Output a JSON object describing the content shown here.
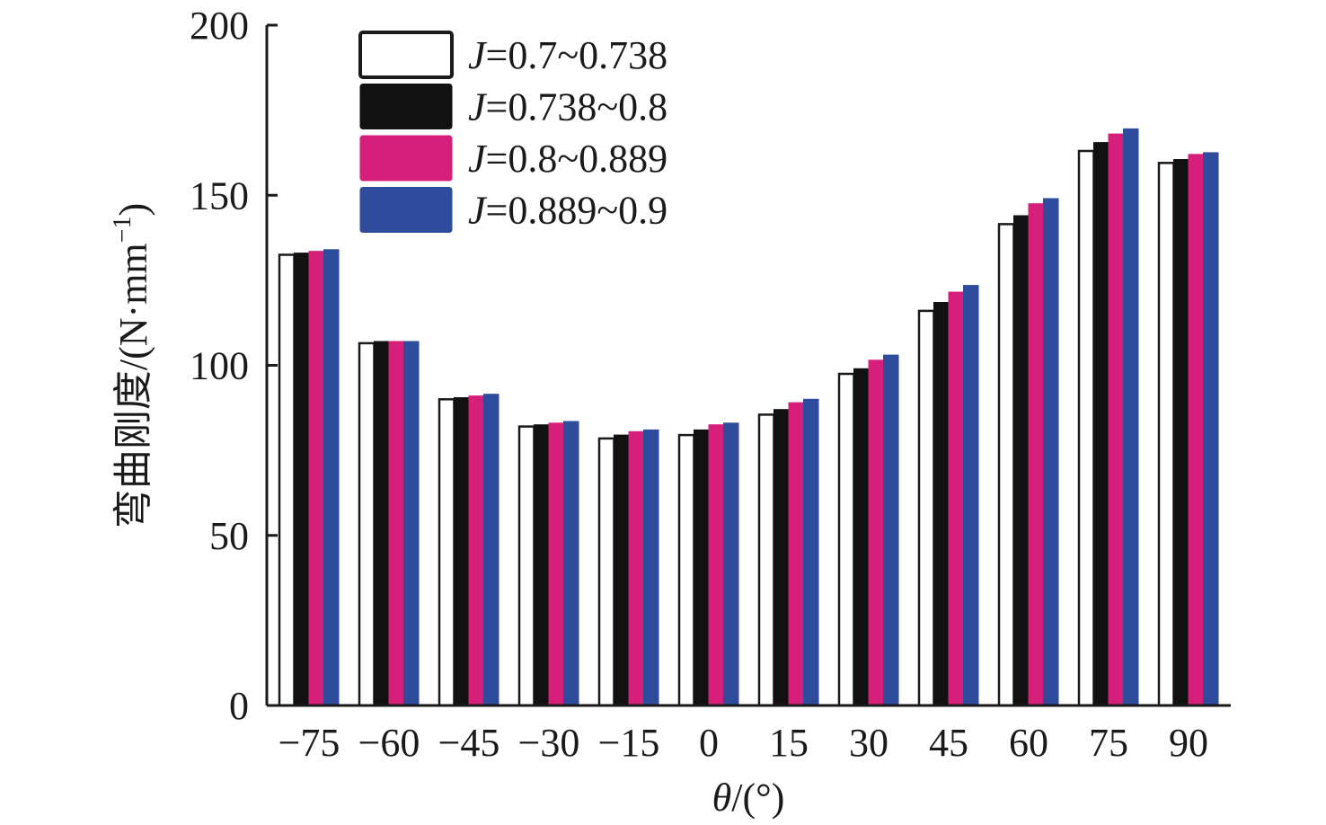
{
  "chart_data": {
    "type": "bar",
    "categories": [
      "−75",
      "−60",
      "−45",
      "−30",
      "−15",
      "0",
      "15",
      "30",
      "45",
      "60",
      "75",
      "90"
    ],
    "series": [
      {
        "name": "J=0.7~0.738",
        "name_prefix": "J",
        "name_rest": "=0.7~0.738",
        "color": "#ffffff",
        "values": [
          132.5,
          106.5,
          90.0,
          82.0,
          78.5,
          79.5,
          85.5,
          97.5,
          116.0,
          141.5,
          163.0,
          159.5
        ]
      },
      {
        "name": "J=0.738~0.8",
        "name_prefix": "J",
        "name_rest": "=0.738~0.8",
        "color": "#111111",
        "values": [
          133.0,
          107.0,
          90.5,
          82.5,
          79.5,
          81.0,
          87.0,
          99.0,
          118.5,
          144.0,
          165.5,
          160.5
        ]
      },
      {
        "name": "J=0.8~0.889",
        "name_prefix": "J",
        "name_rest": "=0.8~0.889",
        "color": "#d61f7a",
        "values": [
          133.5,
          107.0,
          91.0,
          83.0,
          80.5,
          82.5,
          89.0,
          101.5,
          121.5,
          147.5,
          168.0,
          162.0
        ]
      },
      {
        "name": "J=0.889~0.9",
        "name_prefix": "J",
        "name_rest": "=0.889~0.9",
        "color": "#2f4b9c",
        "values": [
          134.0,
          107.0,
          91.5,
          83.5,
          81.0,
          83.0,
          90.0,
          103.0,
          123.5,
          149.0,
          169.5,
          162.5
        ]
      }
    ],
    "yticks": [
      "0",
      "50",
      "100",
      "150",
      "200"
    ],
    "ylim": [
      0,
      200
    ],
    "xlabel_symbol": "θ",
    "xlabel_rest": "/(°)",
    "ylabel_main": "弯曲刚度/(N·mm",
    "ylabel_sup": "−1",
    "ylabel_close": ")",
    "legend_position": "top-left"
  }
}
